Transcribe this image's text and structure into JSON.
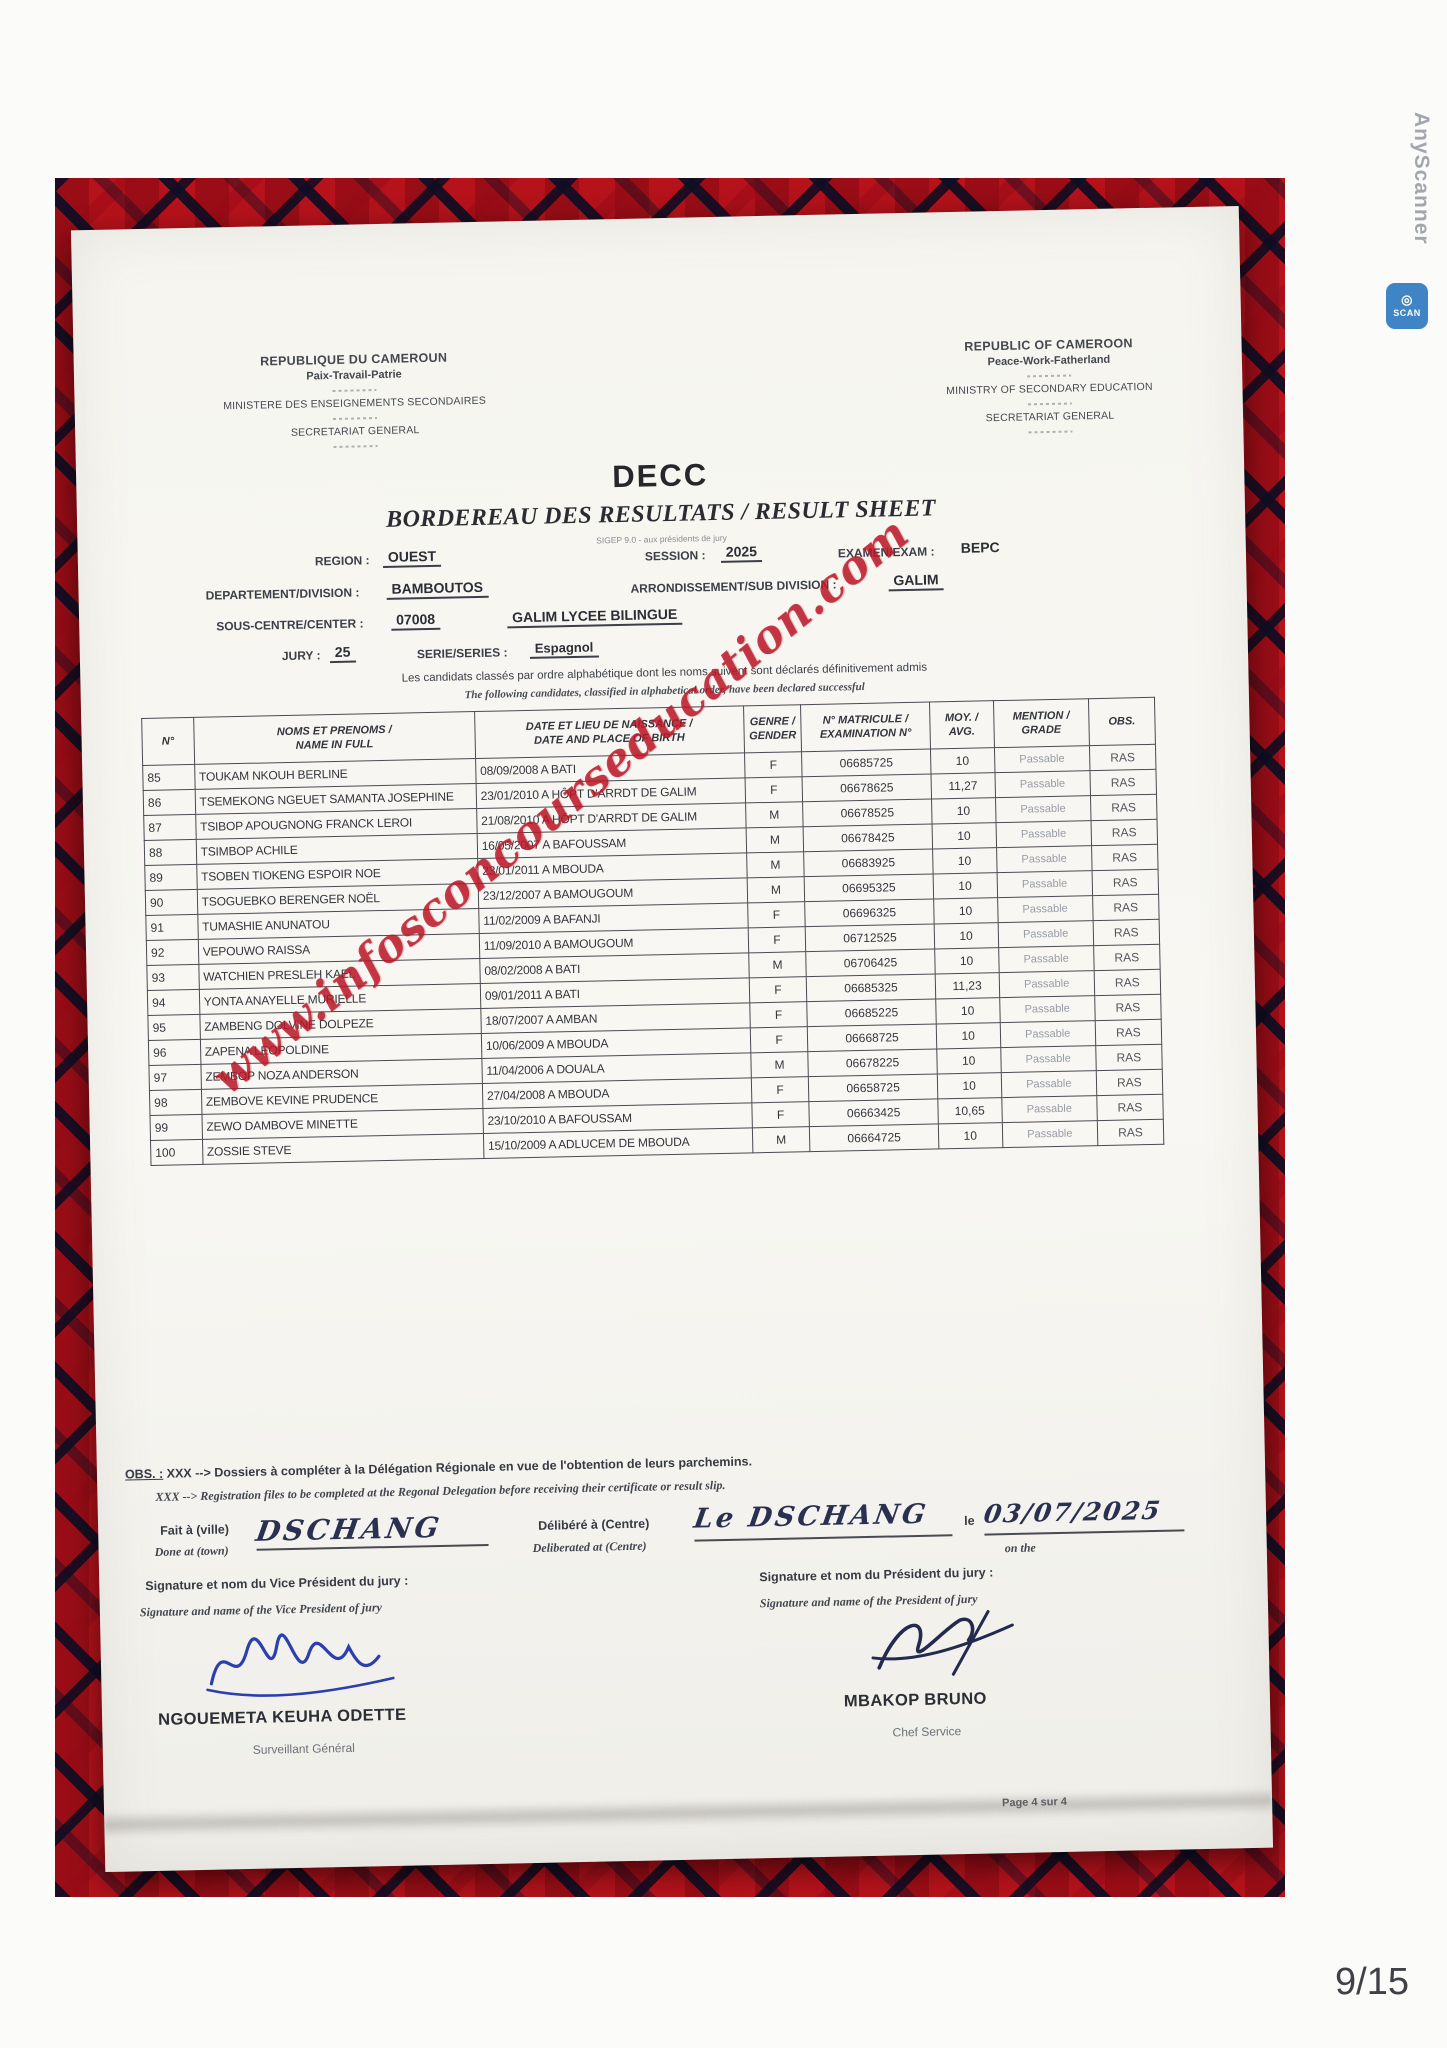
{
  "app": {
    "scanner_label": "AnyScanner",
    "scan_badge": "SCAN",
    "page_indicator": "9/15"
  },
  "colors": {
    "tartan_red": "#b5121b",
    "watermark_red": "#ba1626",
    "ink": "#33353c",
    "signature_blue": "#2b3fae",
    "signature_dark": "#232a4d",
    "scan_badge_blue": "#3f85c5"
  },
  "letterhead": {
    "fr": [
      "REPUBLIQUE DU CAMEROUN",
      "Paix-Travail-Patrie",
      "MINISTERE DES ENSEIGNEMENTS SECONDAIRES",
      "SECRETARIAT GENERAL"
    ],
    "en": [
      "REPUBLIC OF CAMEROON",
      "Peace-Work-Fatherland",
      "MINISTRY OF SECONDARY EDUCATION",
      "SECRETARIAT GENERAL"
    ]
  },
  "title": {
    "main": "DECC",
    "subtitle": "BORDEREAU DES RESULTATS / RESULT SHEET",
    "subnote": "SIGEP 9.0 - aux présidents de jury"
  },
  "form": {
    "region_label": "REGION :",
    "region_value": "OUEST",
    "session_label": "SESSION :",
    "session_value": "2025",
    "exam_label": "EXAMEN/EXAM :",
    "exam_value": "BEPC",
    "division_label": "DEPARTEMENT/DIVISION :",
    "division_value": "BAMBOUTOS",
    "subdivision_label": "ARRONDISSEMENT/SUB DIVISION :",
    "subdivision_value": "GALIM",
    "center_label": "SOUS-CENTRE/CENTER :",
    "center_code": "07008",
    "center_name": "GALIM LYCEE BILINGUE",
    "jury_label": "JURY :",
    "jury_value": "25",
    "series_label": "SERIE/SERIES :",
    "series_value": "Espagnol"
  },
  "notice": {
    "fr": "Les candidats classés par ordre alphabétique dont les noms suivent sont déclarés définitivement admis",
    "en": "The following candidates, classified in alphabetical order, have been declared successful"
  },
  "table": {
    "headers": [
      [
        "N°",
        ""
      ],
      [
        "NOMS ET PRENOMS /",
        "NAME IN FULL"
      ],
      [
        "DATE ET LIEU DE NAISSANCE /",
        "DATE AND PLACE OF BIRTH"
      ],
      [
        "GENRE /",
        "GENDER"
      ],
      [
        "N° MATRICULE /",
        "EXAMINATION N°"
      ],
      [
        "MOY. /",
        "AVG."
      ],
      [
        "MENTION /",
        "GRADE"
      ],
      [
        "OBS.",
        ""
      ]
    ],
    "rows": [
      [
        "85",
        "TOUKAM NKOUH BERLINE",
        "08/09/2008 A BATI",
        "F",
        "06685725",
        "10",
        "Passable",
        "RAS"
      ],
      [
        "86",
        "TSEMEKONG NGEUET SAMANTA JOSEPHINE",
        "23/01/2010 A HÔPT D'ARRDT DE GALIM",
        "F",
        "06678625",
        "11,27",
        "Passable",
        "RAS"
      ],
      [
        "87",
        "TSIBOP APOUGNONG FRANCK LEROI",
        "21/08/2010 A HÔPT D'ARRDT DE GALIM",
        "M",
        "06678525",
        "10",
        "Passable",
        "RAS"
      ],
      [
        "88",
        "TSIMBOP ACHILE",
        "16/05/2007 A BAFOUSSAM",
        "M",
        "06678425",
        "10",
        "Passable",
        "RAS"
      ],
      [
        "89",
        "TSOBEN TIOKENG ESPOIR NOE",
        "23/01/2011 A MBOUDA",
        "M",
        "06683925",
        "10",
        "Passable",
        "RAS"
      ],
      [
        "90",
        "TSOGUEBKO BERENGER NOËL",
        "23/12/2007 A BAMOUGOUM",
        "M",
        "06695325",
        "10",
        "Passable",
        "RAS"
      ],
      [
        "91",
        "TUMASHIE ANUNATOU",
        "11/02/2009 A BAFANJI",
        "F",
        "06696325",
        "10",
        "Passable",
        "RAS"
      ],
      [
        "92",
        "VEPOUWO RAISSA",
        "11/09/2010 A BAMOUGOUM",
        "F",
        "06712525",
        "10",
        "Passable",
        "RAS"
      ],
      [
        "93",
        "WATCHIEN PRESLEH KAEL",
        "08/02/2008 A BATI",
        "M",
        "06706425",
        "10",
        "Passable",
        "RAS"
      ],
      [
        "94",
        "YONTA ANAYELLE MURIELLE",
        "09/01/2011 A BATI",
        "F",
        "06685325",
        "11,23",
        "Passable",
        "RAS"
      ],
      [
        "95",
        "ZAMBENG DOLVINE DOLPEZE",
        "18/07/2007 A AMBAN",
        "F",
        "06685225",
        "10",
        "Passable",
        "RAS"
      ],
      [
        "96",
        "ZAPENA LEOPOLDINE",
        "10/06/2009 A MBOUDA",
        "F",
        "06668725",
        "10",
        "Passable",
        "RAS"
      ],
      [
        "97",
        "ZEMBOP NOZA ANDERSON",
        "11/04/2006 A DOUALA",
        "M",
        "06678225",
        "10",
        "Passable",
        "RAS"
      ],
      [
        "98",
        "ZEMBOVE KEVINE PRUDENCE",
        "27/04/2008 A MBOUDA",
        "F",
        "06658725",
        "10",
        "Passable",
        "RAS"
      ],
      [
        "99",
        "ZEWO DAMBOVE MINETTE",
        "23/10/2010 A BAFOUSSAM",
        "F",
        "06663425",
        "10,65",
        "Passable",
        "RAS"
      ],
      [
        "100",
        "ZOSSIE STEVE",
        "15/10/2009 A ADLUCEM DE MBOUDA",
        "M",
        "06664725",
        "10",
        "Passable",
        "RAS"
      ]
    ]
  },
  "watermark": "www.infosconcourseducation.com",
  "obs": {
    "label": "OBS. :",
    "fr": "XXX --> Dossiers à compléter à la Délégation Régionale en vue de l'obtention de leurs parchemins.",
    "en": "XXX --> Registration files to be completed at the Regonal Delegation before receiving their certificate or result slip."
  },
  "footer": {
    "done_at_fr": "Fait à (ville)",
    "done_at_en": "Done at (town)",
    "done_at_value": "DSCHANG",
    "deliberated_fr": "Délibéré à (Centre)",
    "deliberated_en": "Deliberated at (Centre)",
    "deliberated_value": "Le DSCHANG",
    "date_le": "le",
    "date_value": "03/07/2025",
    "date_on_the": "on the",
    "vp_label_fr": "Signature et nom du Vice Président du jury :",
    "vp_label_en": "Signature and name of the Vice President of jury",
    "vp_name": "NGOUEMETA KEUHA ODETTE",
    "vp_title": "Surveillant Général",
    "p_label_fr": "Signature et nom  du Président du jury :",
    "p_label_en": "Signature and name of the President of jury",
    "p_name": "MBAKOP BRUNO",
    "p_title": "Chef Service",
    "page_note": "Page 4 sur 4"
  }
}
